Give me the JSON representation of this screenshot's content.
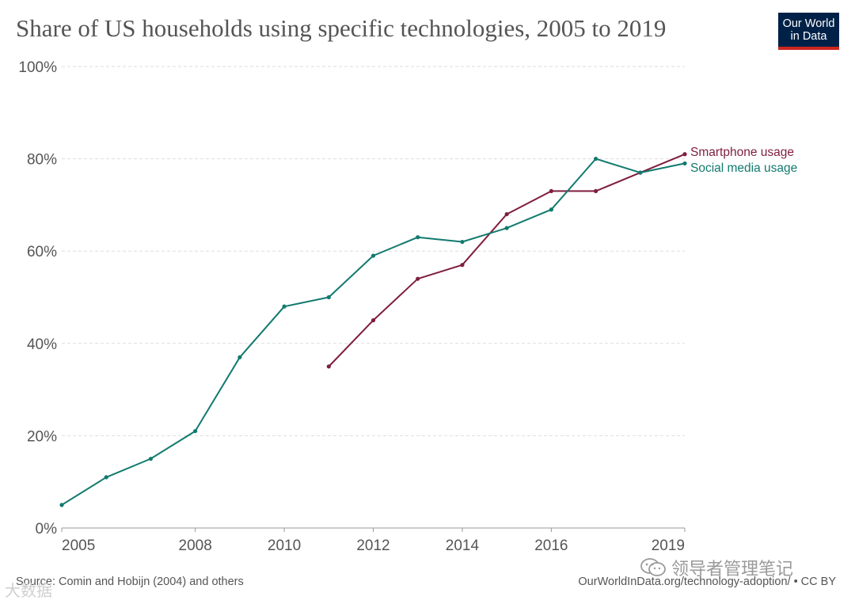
{
  "header": {
    "title": "Share of US households using specific technologies, 2005 to 2019",
    "logo_line1": "Our World",
    "logo_line2": "in Data"
  },
  "footer": {
    "source": "Source: Comin and Hobijn (2004) and others",
    "credit": "OurWorldInData.org/technology-adoption/ • CC BY"
  },
  "watermark": {
    "text": "领导者管理笔记",
    "text2": "大数据"
  },
  "colors": {
    "smartphone": "#7f1d3f",
    "social": "#127a6f",
    "grid": "#dddddd",
    "text": "#555555",
    "logo_bg": "#002147",
    "logo_bar": "#ce261e"
  },
  "chart_data": {
    "type": "line",
    "title": "Share of US households using specific technologies, 2005 to 2019",
    "xlim": [
      2005,
      2019
    ],
    "ylim": [
      0,
      100
    ],
    "x_ticks": [
      2005,
      2008,
      2010,
      2012,
      2014,
      2016,
      2019
    ],
    "y_ticks": [
      0,
      20,
      40,
      60,
      80,
      100
    ],
    "y_tick_labels": [
      "0%",
      "20%",
      "40%",
      "60%",
      "80%",
      "100%"
    ],
    "grid": "horizontal dashed",
    "legend": "inline labels at right end of lines",
    "series": [
      {
        "name": "Smartphone usage",
        "color_key": "smartphone",
        "x": [
          2011,
          2012,
          2013,
          2014,
          2015,
          2016,
          2017,
          2018,
          2019
        ],
        "values": [
          35,
          45,
          54,
          57,
          68,
          73,
          73,
          77,
          81
        ]
      },
      {
        "name": "Social media usage",
        "color_key": "social",
        "x": [
          2005,
          2006,
          2007,
          2008,
          2009,
          2010,
          2011,
          2012,
          2013,
          2014,
          2015,
          2016,
          2017,
          2018,
          2019
        ],
        "values": [
          5,
          11,
          15,
          21,
          37,
          48,
          50,
          59,
          63,
          62,
          65,
          69,
          80,
          77,
          79
        ]
      }
    ]
  }
}
